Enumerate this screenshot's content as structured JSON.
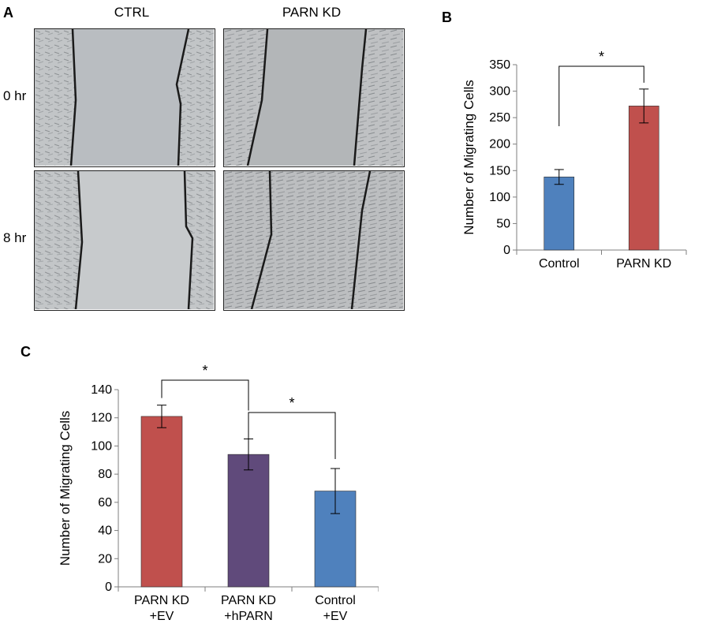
{
  "figure": {
    "panel_a_label": "A",
    "panel_b_label": "B",
    "panel_c_label": "C",
    "panel_a": {
      "columns": [
        "CTRL",
        "PARN KD"
      ],
      "rows": [
        "0 hr",
        "8 hr"
      ]
    }
  },
  "chart_data": [
    {
      "type": "bar",
      "panel": "B",
      "title": "",
      "xlabel": "",
      "ylabel": "Number of Migrating Cells",
      "categories": [
        "Control",
        "PARN KD"
      ],
      "values": [
        138,
        272
      ],
      "error": [
        14,
        32
      ],
      "colors": [
        "#4f81bd",
        "#c0504d"
      ],
      "ylim": [
        0,
        350
      ],
      "yticks": [
        0,
        50,
        100,
        150,
        200,
        250,
        300,
        350
      ],
      "significance": [
        {
          "from": 0,
          "to": 1,
          "label": "*"
        }
      ],
      "grid": false,
      "legend": "none"
    },
    {
      "type": "bar",
      "panel": "C",
      "title": "",
      "xlabel": "",
      "ylabel": "Number of Migrating Cells",
      "categories": [
        [
          "PARN KD",
          "+EV"
        ],
        [
          "PARN KD",
          "+hPARN"
        ],
        [
          "Control",
          "+EV"
        ]
      ],
      "values": [
        121,
        94,
        68
      ],
      "error": [
        8,
        11,
        16
      ],
      "colors": [
        "#c0504d",
        "#604a7b",
        "#4f81bd"
      ],
      "ylim": [
        0,
        140
      ],
      "yticks": [
        0,
        20,
        40,
        60,
        80,
        100,
        120,
        140
      ],
      "significance": [
        {
          "from": 0,
          "to": 1,
          "label": "*"
        },
        {
          "from": 1,
          "to": 2,
          "label": "*"
        }
      ],
      "grid": false,
      "legend": "none"
    }
  ]
}
